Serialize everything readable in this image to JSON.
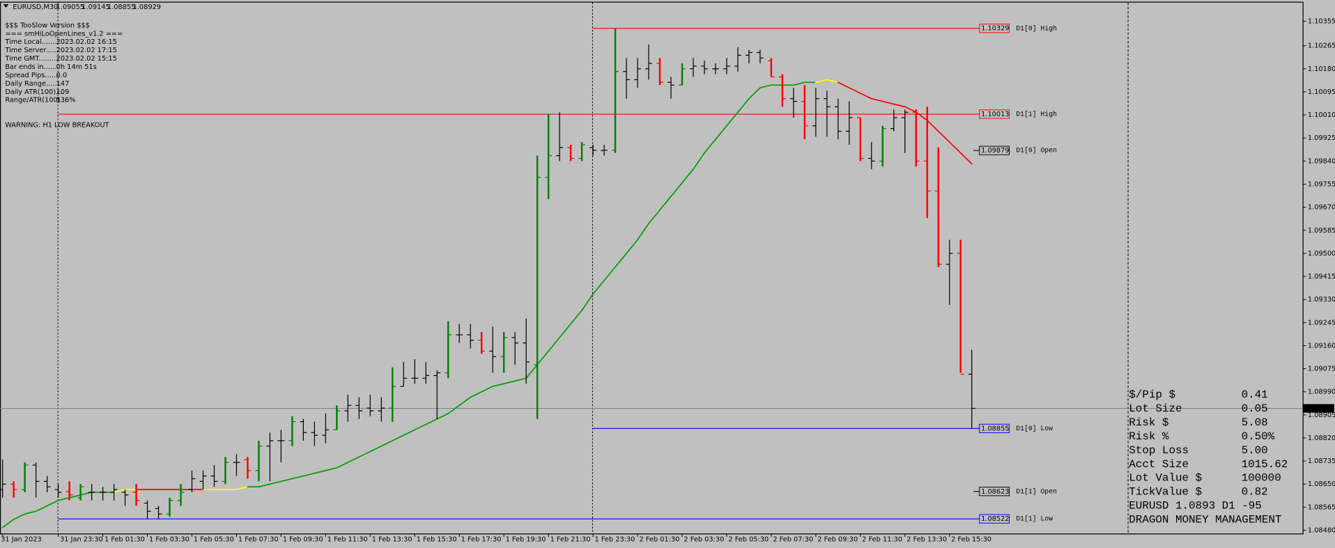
{
  "chart_data": {
    "type": "ohlc",
    "symbol": "EURUSD,M30",
    "xlim": [
      -0.23,
      116.7
    ],
    "ylim": [
      1.08468,
      1.10424
    ],
    "xticks": [
      {
        "value": 0,
        "label": "31 Jan 2023"
      },
      {
        "value": 5,
        "label": "31 Jan 23:30"
      },
      {
        "value": 9,
        "label": "1 Feb 01:30"
      },
      {
        "value": 13,
        "label": "1 Feb 03:30"
      },
      {
        "value": 17,
        "label": "1 Feb 05:30"
      },
      {
        "value": 21,
        "label": "1 Feb 07:30"
      },
      {
        "value": 25,
        "label": "1 Feb 09:30"
      },
      {
        "value": 29,
        "label": "1 Feb 11:30"
      },
      {
        "value": 33,
        "label": "1 Feb 13:30"
      },
      {
        "value": 37,
        "label": "1 Feb 15:30"
      },
      {
        "value": 41,
        "label": "1 Feb 17:30"
      },
      {
        "value": 45,
        "label": "1 Feb 19:30"
      },
      {
        "value": 49,
        "label": "1 Feb 21:30"
      },
      {
        "value": 53,
        "label": "1 Feb 23:30"
      },
      {
        "value": 57,
        "label": "2 Feb 01:30"
      },
      {
        "value": 61,
        "label": "2 Feb 03:30"
      },
      {
        "value": 65,
        "label": "2 Feb 05:30"
      },
      {
        "value": 69,
        "label": "2 Feb 07:30"
      },
      {
        "value": 73,
        "label": "2 Feb 09:30"
      },
      {
        "value": 77,
        "label": "2 Feb 11:30"
      },
      {
        "value": 81,
        "label": "2 Feb 13:30"
      },
      {
        "value": 85,
        "label": "2 Feb 15:30"
      }
    ],
    "yticks": [
      1.10355,
      1.10265,
      {
        "value": 1.1018,
        "label": "1.10180"
      },
      1.10095,
      {
        "value": 1.1001,
        "label": "1.10010"
      },
      1.09925,
      {
        "value": 1.0984,
        "label": "1.09840"
      },
      1.09755,
      {
        "value": 1.0967,
        "label": "1.09670"
      },
      1.09585,
      {
        "value": 1.095,
        "label": "1.09500"
      },
      1.09415,
      {
        "value": 1.0933,
        "label": "1.09330"
      },
      1.09245,
      {
        "value": 1.0916,
        "label": "1.09160"
      },
      1.09075,
      {
        "value": 1.0899,
        "label": "1.08990"
      },
      1.08905,
      {
        "value": 1.0882,
        "label": "1.08820"
      },
      1.08735,
      {
        "value": 1.0865,
        "label": "1.08650"
      },
      1.08565,
      {
        "value": 1.0848,
        "label": "1.08480"
      }
    ],
    "bars": [
      [
        1.0863,
        1.0874,
        1.086,
        1.0865
      ],
      [
        1.0865,
        1.0866,
        1.086,
        1.0863
      ],
      [
        1.0863,
        1.0873,
        1.0862,
        1.0872
      ],
      [
        1.0872,
        1.0873,
        1.086,
        1.0866
      ],
      [
        1.0866,
        1.0868,
        1.0862,
        1.0864
      ],
      [
        1.0863,
        1.0865,
        1.086,
        1.0862
      ],
      [
        1.08623,
        1.0866,
        1.0859,
        1.0861
      ],
      [
        1.086,
        1.0865,
        1.0859,
        1.0864
      ],
      [
        1.0862,
        1.0865,
        1.0859,
        1.0862
      ],
      [
        1.0862,
        1.0864,
        1.0859,
        1.0862
      ],
      [
        1.0862,
        1.0865,
        1.0859,
        1.0863
      ],
      [
        1.0862,
        1.0863,
        1.0857,
        1.0861
      ],
      [
        1.0862,
        1.0865,
        1.0857,
        1.0859
      ],
      [
        1.0858,
        1.0859,
        1.08522,
        1.0855
      ],
      [
        1.0856,
        1.0857,
        1.0852,
        1.0854
      ],
      [
        1.0854,
        1.086,
        1.0853,
        1.0859
      ],
      [
        1.0859,
        1.0865,
        1.0857,
        1.0862
      ],
      [
        1.0863,
        1.087,
        1.0862,
        1.0867
      ],
      [
        1.0866,
        1.087,
        1.0863,
        1.0868
      ],
      [
        1.0868,
        1.0872,
        1.0864,
        1.0866
      ],
      [
        1.0866,
        1.0875,
        1.0865,
        1.0873
      ],
      [
        1.0873,
        1.0876,
        1.0868,
        1.0873
      ],
      [
        1.0874,
        1.0875,
        1.0867,
        1.087
      ],
      [
        1.087,
        1.0881,
        1.0866,
        1.0879
      ],
      [
        1.0879,
        1.0884,
        1.0866,
        1.0881
      ],
      [
        1.0881,
        1.0885,
        1.0873,
        1.0881
      ],
      [
        1.0881,
        1.089,
        1.0879,
        1.0888
      ],
      [
        1.0888,
        1.0889,
        1.0881,
        1.0884
      ],
      [
        1.0884,
        1.0888,
        1.0879,
        1.0883
      ],
      [
        1.0883,
        1.0891,
        1.088,
        1.0885
      ],
      [
        1.0885,
        1.0894,
        1.0885,
        1.0892
      ],
      [
        1.0892,
        1.0898,
        1.0888,
        1.0894
      ],
      [
        1.0894,
        1.0897,
        1.0889,
        1.0892
      ],
      [
        1.0893,
        1.0898,
        1.089,
        1.0892
      ],
      [
        1.0892,
        1.0897,
        1.0888,
        1.0893
      ],
      [
        1.0893,
        1.0908,
        1.0888,
        1.0901
      ],
      [
        1.0901,
        1.091,
        1.0901,
        1.0904
      ],
      [
        1.0904,
        1.0911,
        1.0902,
        1.0904
      ],
      [
        1.0904,
        1.091,
        1.0902,
        1.0905
      ],
      [
        1.0905,
        1.0907,
        1.0889,
        1.0906
      ],
      [
        1.0906,
        1.0925,
        1.0904,
        1.092
      ],
      [
        1.092,
        1.0924,
        1.0917,
        1.092
      ],
      [
        1.092,
        1.0924,
        1.0915,
        1.0918
      ],
      [
        1.0918,
        1.0921,
        1.0913,
        1.0914
      ],
      [
        1.0914,
        1.0923,
        1.0906,
        1.0912
      ],
      [
        1.0912,
        1.0921,
        1.0906,
        1.0919
      ],
      [
        1.0919,
        1.0921,
        1.0909,
        1.0917
      ],
      [
        1.0917,
        1.0926,
        1.0902,
        1.091
      ],
      [
        1.0909,
        1.0986,
        1.0889,
        1.0978
      ],
      [
        1.0978,
        1.10013,
        1.097,
        1.0986
      ],
      [
        1.0986,
        1.1002,
        1.0984,
        1.0989
      ],
      [
        1.0989,
        1.099,
        1.0984,
        1.0985
      ],
      [
        1.0985,
        1.0991,
        1.0984,
        1.099
      ],
      [
        1.0989,
        1.099,
        1.0986,
        1.0988
      ],
      [
        1.09879,
        1.099,
        1.0986,
        1.0988
      ],
      [
        1.0988,
        1.10329,
        1.0987,
        1.1017
      ],
      [
        1.1017,
        1.1022,
        1.1007,
        1.1014
      ],
      [
        1.1014,
        1.1022,
        1.1011,
        1.1018
      ],
      [
        1.1018,
        1.1027,
        1.1014,
        1.102
      ],
      [
        1.102,
        1.1022,
        1.1012,
        1.1013
      ],
      [
        1.1013,
        1.1015,
        1.1007,
        1.1012
      ],
      [
        1.1012,
        1.102,
        1.1012,
        1.1018
      ],
      [
        1.1018,
        1.1022,
        1.1015,
        1.1019
      ],
      [
        1.1019,
        1.1021,
        1.1016,
        1.1018
      ],
      [
        1.1018,
        1.102,
        1.1016,
        1.1018
      ],
      [
        1.1018,
        1.1022,
        1.1016,
        1.1019
      ],
      [
        1.1019,
        1.1026,
        1.1017,
        1.1023
      ],
      [
        1.1023,
        1.1025,
        1.102,
        1.1024
      ],
      [
        1.1024,
        1.1025,
        1.102,
        1.1022
      ],
      [
        1.1021,
        1.1022,
        1.1015,
        1.1015
      ],
      [
        1.1015,
        1.1016,
        1.1004,
        1.1007
      ],
      [
        1.1007,
        1.1011,
        1.1,
        1.1006
      ],
      [
        1.1006,
        1.1012,
        1.0992,
        1.0997
      ],
      [
        1.0997,
        1.1011,
        1.0993,
        1.1007
      ],
      [
        1.1007,
        1.101,
        1.0993,
        1.1004
      ],
      [
        1.1004,
        1.1007,
        1.0992,
        1.0995
      ],
      [
        1.0995,
        1.1006,
        1.099,
        1.1
      ],
      [
        1.1,
        1.1,
        1.0984,
        1.0985
      ],
      [
        1.0985,
        1.0991,
        1.0981,
        1.0984
      ],
      [
        1.0984,
        1.0997,
        1.0982,
        1.0996
      ],
      [
        1.0996,
        1.1003,
        1.0995,
        1.1
      ],
      [
        1.1,
        1.1003,
        1.0987,
        1.1002
      ],
      [
        1.1002,
        1.1003,
        1.0982,
        1.0984
      ],
      [
        1.0984,
        1.1004,
        1.0963,
        1.0973
      ],
      [
        1.0973,
        1.0989,
        1.0945,
        1.0946
      ],
      [
        1.0946,
        1.0955,
        1.0931,
        1.095
      ],
      [
        1.095,
        1.0955,
        1.0906,
        1.09055
      ],
      [
        1.09055,
        1.09145,
        1.08855,
        1.08929
      ]
    ],
    "bar_colors": [
      "black",
      "red",
      "green",
      "black",
      "black",
      "black",
      "red",
      "green",
      "black",
      "black",
      "black",
      "black",
      "red",
      "black",
      "black",
      "green",
      "green",
      "black",
      "black",
      "black",
      "green",
      "black",
      "red",
      "green",
      "black",
      "black",
      "green",
      "black",
      "black",
      "black",
      "green",
      "black",
      "black",
      "black",
      "black",
      "green",
      "black",
      "black",
      "black",
      "black",
      "green",
      "black",
      "black",
      "red",
      "black",
      "green",
      "black",
      "black",
      "green",
      "green",
      "black",
      "red",
      "green",
      "black",
      "black",
      "green",
      "black",
      "black",
      "black",
      "red",
      "black",
      "green",
      "black",
      "black",
      "black",
      "black",
      "black",
      "black",
      "black",
      "red",
      "red",
      "black",
      "red",
      "black",
      "black",
      "black",
      "black",
      "red",
      "black",
      "green",
      "black",
      "black",
      "red",
      "red",
      "red",
      "black",
      "red",
      "black"
    ],
    "ma": {
      "values": [
        1.0849,
        1.0852,
        1.0854,
        1.0855,
        1.0857,
        1.0859,
        1.086,
        1.0861,
        1.0862,
        1.0862,
        1.0862,
        1.0863,
        1.0863,
        1.0863,
        1.0863,
        1.0863,
        1.0863,
        1.0863,
        1.0863,
        1.0863,
        1.0863,
        1.0863,
        1.0864,
        1.0864,
        1.0865,
        1.0866,
        1.0867,
        1.0868,
        1.0869,
        1.087,
        1.0871,
        1.0873,
        1.0875,
        1.0877,
        1.0879,
        1.0881,
        1.0883,
        1.0885,
        1.0887,
        1.0889,
        1.0891,
        1.0894,
        1.0897,
        1.0899,
        1.0901,
        1.0902,
        1.0903,
        1.0904,
        1.0909,
        1.0914,
        1.0919,
        1.0924,
        1.0929,
        1.0935,
        1.094,
        1.0945,
        1.095,
        1.0955,
        1.0961,
        1.0966,
        1.0971,
        1.0976,
        1.0981,
        1.0987,
        1.0992,
        1.0997,
        1.1002,
        1.1007,
        1.1011,
        1.1012,
        1.1012,
        1.1012,
        1.1013,
        1.1013,
        1.1014,
        1.1013,
        1.1011,
        1.1009,
        1.1007,
        1.1006,
        1.1005,
        1.1004,
        1.1002,
        1.0999,
        1.0995,
        1.0991,
        1.0987,
        1.0983
      ],
      "colors": [
        "#00a000",
        "#00a000",
        "#00a000",
        "#00a000",
        "#00a000",
        "#00a000",
        "#00a000",
        "#00a000",
        "#00a000",
        "#00a000",
        "#00a000",
        "#ffff00",
        "#ffff00",
        "#ff0000",
        "#ff0000",
        "#ff0000",
        "#ff0000",
        "#ff0000",
        "#ff0000",
        "#ffff00",
        "#ffff00",
        "#ffff00",
        "#ffff00",
        "#00a000",
        "#00a000",
        "#00a000",
        "#00a000",
        "#00a000",
        "#00a000",
        "#00a000",
        "#00a000",
        "#00a000",
        "#00a000",
        "#00a000",
        "#00a000",
        "#00a000",
        "#00a000",
        "#00a000",
        "#00a000",
        "#00a000",
        "#00a000",
        "#00a000",
        "#00a000",
        "#00a000",
        "#00a000",
        "#00a000",
        "#00a000",
        "#00a000",
        "#00a000",
        "#00a000",
        "#00a000",
        "#00a000",
        "#00a000",
        "#00a000",
        "#00a000",
        "#00a000",
        "#00a000",
        "#00a000",
        "#00a000",
        "#00a000",
        "#00a000",
        "#00a000",
        "#00a000",
        "#00a000",
        "#00a000",
        "#00a000",
        "#00a000",
        "#00a000",
        "#00a000",
        "#00a000",
        "#00a000",
        "#00a000",
        "#00a000",
        "#00a000",
        "#ffff00",
        "#ffff00",
        "#ff0000",
        "#ff0000",
        "#ff0000",
        "#ff0000",
        "#ff0000",
        "#ff0000",
        "#ff0000",
        "#ff0000",
        "#ff0000",
        "#ff0000",
        "#ff0000",
        "#ff0000"
      ]
    },
    "levels": [
      {
        "name": "D1[0] High",
        "value": 1.10329,
        "color": "#ff0000",
        "from": 53
      },
      {
        "name": "D1[1] High",
        "value": 1.10013,
        "color": "#ff0000",
        "from": 5
      },
      {
        "name": "D1[0] Open",
        "value": 1.09879,
        "color": "#000000"
      },
      {
        "name": "D1[0] Low",
        "value": 1.08855,
        "color": "#0000ff",
        "from": 53
      },
      {
        "name": "D1[1] Open",
        "value": 1.08623,
        "color": "#000000"
      },
      {
        "name": "D1[1] Low",
        "value": 1.08522,
        "color": "#0000ff",
        "from": 5
      }
    ]
  },
  "indicator_panel": {
    "title": "$$$ TooSlow Version $$$",
    "subtitle": "=== smHiLoOpenLines_v1.2 ===",
    "rows": [
      [
        "Time Local.........",
        "2023.02.02 16:15"
      ],
      [
        "Time Server.......",
        "2023.02.02 17:15"
      ],
      [
        "Time GMT..........",
        "2023.02.02 15:15"
      ],
      [
        "Bar ends in.......",
        "0h 14m 51s"
      ],
      [
        "Spread Pips.......",
        "0.0"
      ],
      [
        "Daily Range.......",
        "147"
      ],
      [
        "Daily ATR(100)....",
        "109"
      ],
      [
        "Range/ATR(100)...",
        "136%"
      ]
    ],
    "warning": "WARNING: H1 LOW BREAKOUT"
  },
  "money_panel": {
    "rows": [
      {
        "label": "$/Pip $",
        "value": "0.41",
        "color": "#000000"
      },
      {
        "label": "Lot Size",
        "value": "0.05",
        "color": "#000000"
      },
      {
        "label": "Risk $",
        "value": "5.08",
        "color": "#ff0000"
      },
      {
        "label": "Risk %",
        "value": "0.50%",
        "color": "#ff0000"
      },
      {
        "label": "Stop Loss",
        "value": "5.00",
        "color": "#ff0000"
      },
      {
        "label": "Acct Size",
        "value": "1015.62",
        "color": "#00ff00"
      },
      {
        "label": "Lot Value $",
        "value": "100000",
        "color": "#000000"
      },
      {
        "label": "TickValue $",
        "value": "0.82",
        "color": "#000000"
      },
      {
        "label": "EURUSD 1.0893 D1 -95",
        "color": "#ff0000"
      },
      {
        "label": "DRAGON MONEY MANAGEMENT",
        "color": "#000000"
      }
    ]
  }
}
